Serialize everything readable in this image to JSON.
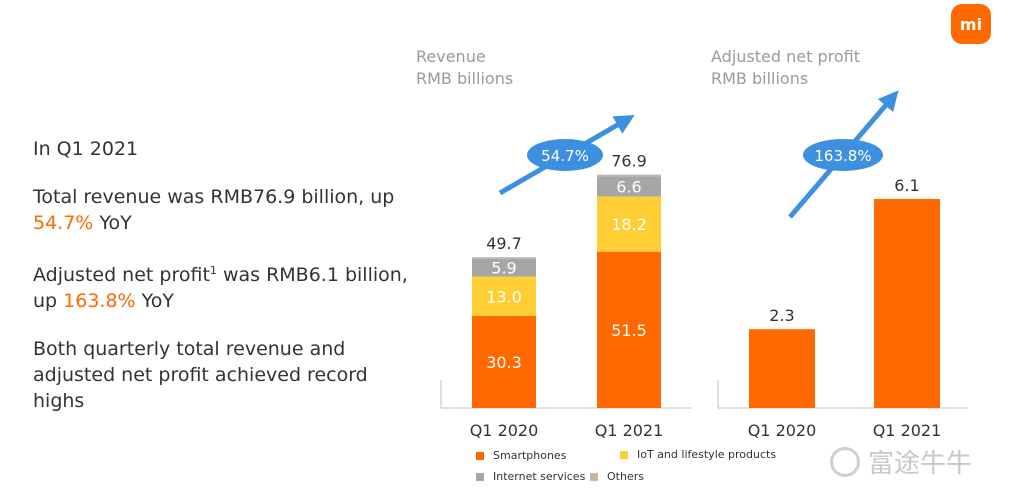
{
  "logo_text": "mi",
  "summary": {
    "heading": "In Q1 2021",
    "revenue_pre": "Total revenue was RMB76.9 billion, up ",
    "revenue_pct": "54.7%",
    "revenue_post": " YoY",
    "profit_pre1": "Adjusted net profit",
    "profit_sup": "1",
    "profit_pre2": " was RMB6.1 billion, up ",
    "profit_pct": "163.8%",
    "profit_post": " YoY",
    "record": "Both quarterly total revenue and adjusted net profit achieved record highs"
  },
  "colors": {
    "smartphones": "#ff6900",
    "iot": "#ffcd34",
    "internet": "#a6a6a6",
    "others": "#c4b7a6",
    "growth": "#3d8fe0"
  },
  "chart_data": [
    {
      "type": "bar",
      "stacked": true,
      "title_line1": "Revenue",
      "title_line2": "RMB billions",
      "categories": [
        "Q1 2020",
        "Q1 2021"
      ],
      "series": [
        {
          "name": "Smartphones",
          "values": [
            30.3,
            51.5
          ]
        },
        {
          "name": "IoT and lifestyle products",
          "values": [
            13.0,
            18.2
          ]
        },
        {
          "name": "Internet services",
          "values": [
            5.9,
            6.6
          ]
        },
        {
          "name": "Others",
          "values": [
            0.5,
            0.6
          ]
        }
      ],
      "segment_labels": [
        [
          "30.3",
          "13.0",
          "5.9"
        ],
        [
          "51.5",
          "18.2",
          "6.6"
        ]
      ],
      "totals": [
        "49.7",
        "76.9"
      ],
      "growth_label": "54.7%",
      "ylim": [
        0,
        90
      ]
    },
    {
      "type": "bar",
      "title_line1": "Adjusted net profit",
      "title_line2": "RMB billions",
      "categories": [
        "Q1 2020",
        "Q1 2021"
      ],
      "values": [
        2.3,
        6.1
      ],
      "value_labels": [
        "2.3",
        "6.1"
      ],
      "growth_label": "163.8%",
      "ylim": [
        0,
        8.2
      ]
    }
  ],
  "legend": [
    {
      "key": "smartphones",
      "label": "Smartphones"
    },
    {
      "key": "iot",
      "label": "IoT and lifestyle products"
    },
    {
      "key": "internet",
      "label": "Internet services"
    },
    {
      "key": "others",
      "label": "Others"
    }
  ],
  "watermark": "富途牛牛"
}
